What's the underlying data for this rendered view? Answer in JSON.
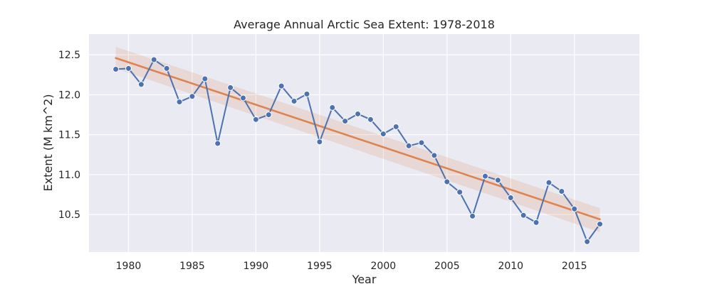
{
  "chart_data": {
    "type": "line",
    "title": "Average Annual Arctic Sea Extent: 1978-2018",
    "xlabel": "Year",
    "ylabel": "Extent (M km^2)",
    "xlim": [
      1976.9,
      2020.1
    ],
    "ylim": [
      10.03,
      12.76
    ],
    "xticks": [
      1980,
      1985,
      1990,
      1995,
      2000,
      2005,
      2010,
      2015
    ],
    "yticks": [
      10.5,
      11.0,
      11.5,
      12.0,
      12.5
    ],
    "grid": true,
    "colors": {
      "background": "#eaeaf2",
      "grid": "#ffffff",
      "series": "#4c72b0",
      "trend": "#dd8452"
    },
    "series": [
      {
        "values": [
          [
            1979,
            12.32
          ],
          [
            1980,
            12.33
          ],
          [
            1981,
            12.13
          ],
          [
            1982,
            12.44
          ],
          [
            1983,
            12.33
          ],
          [
            1984,
            11.91
          ],
          [
            1985,
            11.98
          ],
          [
            1986,
            12.2
          ],
          [
            1987,
            11.39
          ],
          [
            1988,
            12.09
          ],
          [
            1989,
            11.96
          ],
          [
            1990,
            11.69
          ],
          [
            1991,
            11.75
          ],
          [
            1992,
            12.11
          ],
          [
            1993,
            11.92
          ],
          [
            1994,
            12.01
          ],
          [
            1995,
            11.41
          ],
          [
            1996,
            11.84
          ],
          [
            1997,
            11.67
          ],
          [
            1998,
            11.76
          ],
          [
            1999,
            11.69
          ],
          [
            2000,
            11.51
          ],
          [
            2001,
            11.6
          ],
          [
            2002,
            11.36
          ],
          [
            2003,
            11.4
          ],
          [
            2004,
            11.24
          ],
          [
            2005,
            10.91
          ],
          [
            2006,
            10.78
          ],
          [
            2007,
            10.48
          ],
          [
            2008,
            10.98
          ],
          [
            2009,
            10.93
          ],
          [
            2010,
            10.71
          ],
          [
            2011,
            10.49
          ],
          [
            2012,
            10.4
          ],
          [
            2013,
            10.9
          ],
          [
            2014,
            10.79
          ],
          [
            2015,
            10.57
          ],
          [
            2016,
            10.16
          ],
          [
            2017,
            10.38
          ]
        ]
      }
    ],
    "trend": {
      "type": "linear-regression",
      "start": [
        1979,
        12.46
      ],
      "end": [
        2017,
        10.44
      ],
      "ci_start": [
        12.33,
        12.6
      ],
      "ci_end": [
        10.28,
        10.58
      ]
    }
  }
}
